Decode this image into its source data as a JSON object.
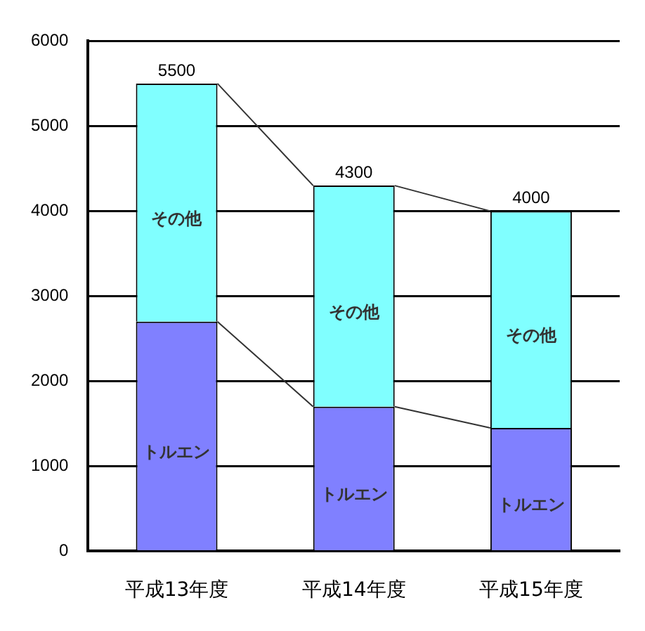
{
  "chart_data": {
    "type": "bar",
    "stacked": true,
    "categories": [
      "平成13年度",
      "平成14年度",
      "平成15年度"
    ],
    "series": [
      {
        "name": "トルエン",
        "color": "#8080ff",
        "values": [
          2700,
          1700,
          1450
        ]
      },
      {
        "name": "その他",
        "color": "#80ffff",
        "values": [
          2800,
          2600,
          2550
        ]
      }
    ],
    "totals": [
      "5500",
      "4300",
      "4000"
    ],
    "ylim": [
      0,
      6000
    ],
    "yticks": [
      0,
      1000,
      2000,
      3000,
      4000,
      5000,
      6000
    ],
    "grid": "y",
    "legend": false
  }
}
